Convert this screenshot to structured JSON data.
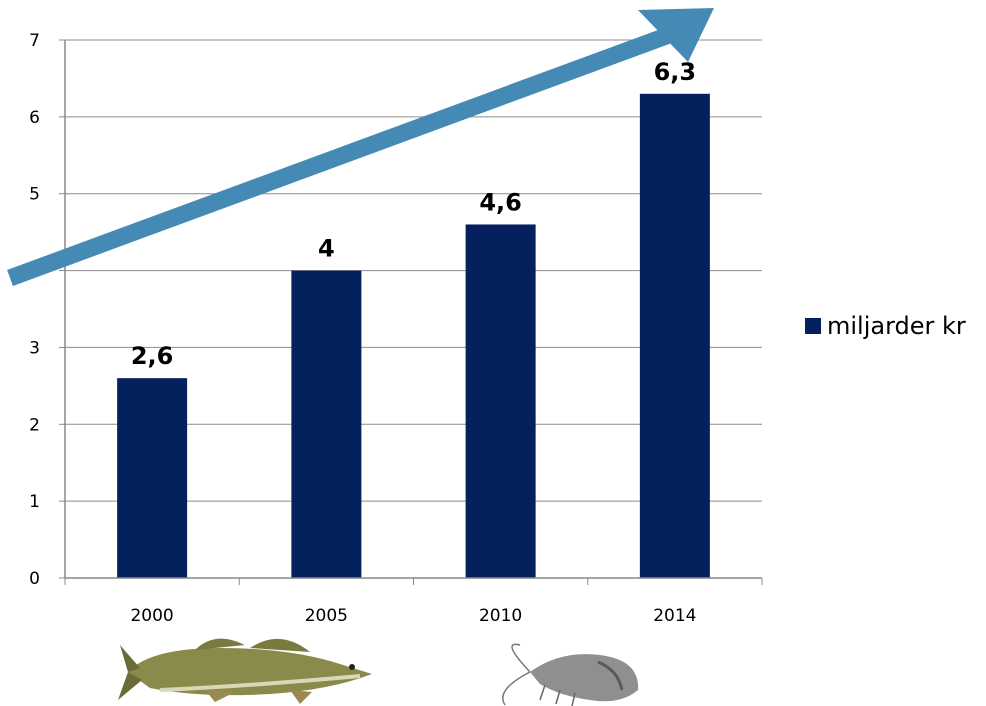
{
  "chart_data": {
    "type": "bar",
    "categories": [
      "2000",
      "2005",
      "2010",
      "2014"
    ],
    "series": [
      {
        "name": "miljarder kr",
        "values": [
          2.6,
          4,
          4.6,
          6.3
        ],
        "color": "#04215E"
      }
    ],
    "data_labels": [
      "2,6",
      "4",
      "4,6",
      "6,3"
    ],
    "ylim": [
      0,
      7
    ],
    "yticks": [
      "0",
      "1",
      "2",
      "3",
      "4",
      "5",
      "6",
      "7"
    ],
    "grid": true,
    "legend_position": "right",
    "trend_arrow_color": "#4589B5",
    "decorations": [
      "fish-illustration",
      "shrimp-illustration"
    ]
  }
}
